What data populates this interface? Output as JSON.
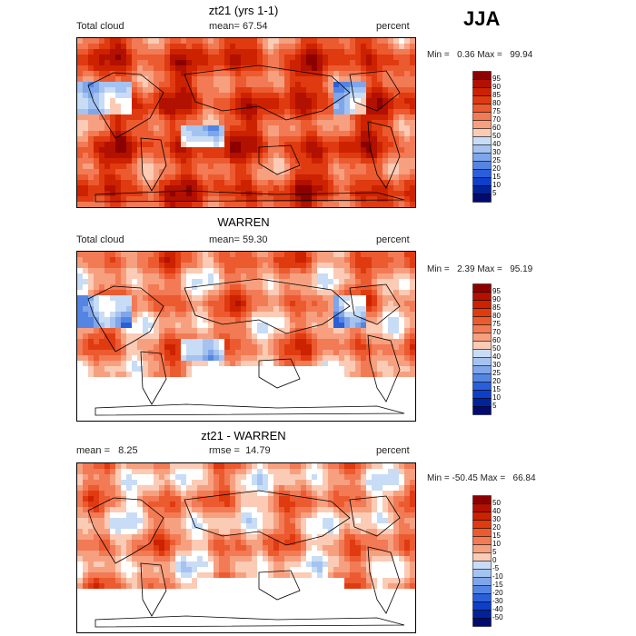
{
  "season": "JJA",
  "panels": [
    {
      "title": "zt21 (yrs 1-1)",
      "left_label": "Total cloud",
      "center_label": "mean=",
      "center_value": "67.54",
      "right_label": "percent",
      "min_label": "Min =",
      "min_value": "0.36",
      "max_label": "Max =",
      "max_value": "99.94",
      "colorbar_labels": [
        "95",
        "90",
        "85",
        "80",
        "75",
        "70",
        "60",
        "50",
        "40",
        "30",
        "25",
        "20",
        "15",
        "10",
        "5"
      ],
      "field_mean": 67.54
    },
    {
      "title": "WARREN",
      "left_label": "Total cloud",
      "center_label": "mean=",
      "center_value": "59.30",
      "right_label": "percent",
      "min_label": "Min =",
      "min_value": "2.39",
      "max_label": "Max =",
      "max_value": "95.19",
      "colorbar_labels": [
        "95",
        "90",
        "85",
        "80",
        "75",
        "70",
        "60",
        "50",
        "40",
        "30",
        "25",
        "20",
        "15",
        "10",
        "5"
      ],
      "field_mean": 59.3
    },
    {
      "title": "zt21 - WARREN",
      "left_label": "mean =",
      "left_value": "8.25",
      "center_label": "rmse =",
      "center_value": "14.79",
      "right_label": "percent",
      "min_label": "Min =",
      "min_value": "-50.45",
      "max_label": "Max =",
      "max_value": "66.84",
      "colorbar_labels": [
        "50",
        "40",
        "30",
        "20",
        "15",
        "10",
        "5",
        "0",
        "-5",
        "-10",
        "-15",
        "-20",
        "-30",
        "-40",
        "-50"
      ],
      "field_mean": 8.25
    }
  ],
  "colors": {
    "ramp": [
      "#8c0000",
      "#b21000",
      "#cc2200",
      "#e03a10",
      "#ec5a30",
      "#f27a55",
      "#f6a080",
      "#fbcbb5",
      "#ffffff",
      "#c8dcf5",
      "#a5c3f0",
      "#7fa5ea",
      "#5585e3",
      "#2a5fd9",
      "#0f3ec8",
      "#002399",
      "#000a70"
    ]
  },
  "chart_data": [
    {
      "type": "heatmap",
      "title": "zt21 (yrs 1-1)",
      "field": "Total cloud",
      "units": "percent",
      "mean": 67.54,
      "min": 0.36,
      "max": 99.94,
      "colorbar_levels": [
        5,
        10,
        15,
        20,
        25,
        30,
        40,
        50,
        60,
        70,
        75,
        80,
        85,
        90,
        95
      ]
    },
    {
      "type": "heatmap",
      "title": "WARREN",
      "field": "Total cloud",
      "units": "percent",
      "mean": 59.3,
      "min": 2.39,
      "max": 95.19,
      "colorbar_levels": [
        5,
        10,
        15,
        20,
        25,
        30,
        40,
        50,
        60,
        70,
        75,
        80,
        85,
        90,
        95
      ]
    },
    {
      "type": "heatmap",
      "title": "zt21 - WARREN",
      "units": "percent",
      "mean": 8.25,
      "rmse": 14.79,
      "min": -50.45,
      "max": 66.84,
      "colorbar_levels": [
        -50,
        -40,
        -30,
        -20,
        -15,
        -10,
        -5,
        0,
        5,
        10,
        15,
        20,
        30,
        40,
        50
      ]
    }
  ]
}
